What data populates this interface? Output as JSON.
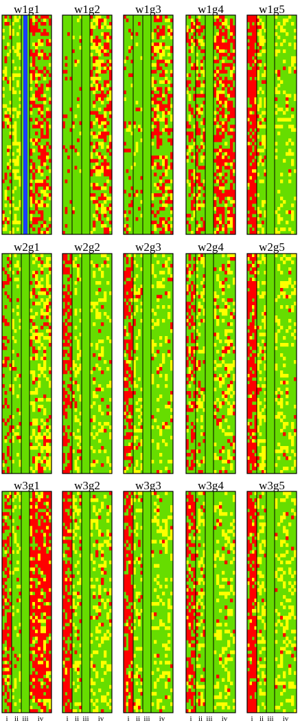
{
  "chart_data": {
    "type": "heatmap",
    "colors": {
      "green": "#66dd00",
      "yellow": "#ffff00",
      "red": "#ff0000",
      "blue": "#1a3cff",
      "border": "#000000"
    },
    "column_tick_labels": [
      "i",
      "ii",
      "iii",
      "iv"
    ],
    "panels": [
      {
        "title": "w1g1",
        "cols": {
          "i": [
            0.7,
            0.2,
            0.25
          ],
          "ii": [
            0.7,
            0.3,
            0.05
          ],
          "iii": "blue",
          "iv": [
            0.5,
            0.15,
            0.35
          ]
        }
      },
      {
        "title": "w1g2",
        "cols": {
          "i": [
            0.85,
            0.0,
            0.15
          ],
          "ii": [
            0.9,
            0.06,
            0.04
          ],
          "iii": [
            1.0,
            0,
            0
          ],
          "iv": [
            0.45,
            0.25,
            0.3
          ]
        }
      },
      {
        "title": "w1g3",
        "cols": {
          "i": [
            0.8,
            0.05,
            0.15
          ],
          "ii": [
            0.85,
            0.1,
            0.05
          ],
          "iii": [
            1.0,
            0,
            0
          ],
          "iv": [
            0.45,
            0.2,
            0.35
          ]
        }
      },
      {
        "title": "w1g4",
        "cols": {
          "i": [
            0.6,
            0.15,
            0.25
          ],
          "ii": [
            0.5,
            0.2,
            0.3
          ],
          "iii": [
            1.0,
            0,
            0
          ],
          "iv": [
            0.4,
            0.15,
            0.45
          ]
        }
      },
      {
        "title": "w1g5",
        "cols": {
          "i": [
            0.2,
            0.05,
            0.75
          ],
          "ii": [
            0.55,
            0.35,
            0.1
          ],
          "iii": [
            1.0,
            0,
            0
          ],
          "iv": [
            0.75,
            0.22,
            0.03
          ]
        }
      },
      {
        "title": "w2g1",
        "cols": {
          "i": [
            0.75,
            0.05,
            0.2
          ],
          "ii": [
            0.8,
            0.15,
            0.05
          ],
          "iii": [
            1.0,
            0,
            0
          ],
          "iv": [
            0.55,
            0.3,
            0.15
          ]
        }
      },
      {
        "title": "w2g2",
        "cols": {
          "i": [
            0.5,
            0.0,
            0.5
          ],
          "ii": [
            0.7,
            0.25,
            0.05
          ],
          "iii": [
            1.0,
            0,
            0
          ],
          "iv": [
            0.75,
            0.2,
            0.05
          ]
        }
      },
      {
        "title": "w2g3",
        "cols": {
          "i": [
            0.3,
            0.05,
            0.65
          ],
          "ii": [
            0.7,
            0.25,
            0.05
          ],
          "iii": [
            1.0,
            0,
            0
          ],
          "iv": [
            0.75,
            0.2,
            0.05
          ]
        }
      },
      {
        "title": "w2g4",
        "cols": {
          "i": [
            0.55,
            0.05,
            0.4
          ],
          "ii": [
            0.65,
            0.25,
            0.1
          ],
          "iii": [
            1.0,
            0,
            0
          ],
          "iv": [
            0.65,
            0.25,
            0.1
          ]
        }
      },
      {
        "title": "w2g5",
        "cols": {
          "i": [
            0.25,
            0.05,
            0.7
          ],
          "ii": [
            0.6,
            0.35,
            0.05
          ],
          "iii": [
            1.0,
            0,
            0
          ],
          "iv": [
            0.75,
            0.22,
            0.03
          ]
        }
      },
      {
        "title": "w3g1",
        "cols": {
          "i": [
            0.55,
            0.05,
            0.4
          ],
          "ii": [
            0.8,
            0.15,
            0.05
          ],
          "iii": [
            1.0,
            0,
            0
          ],
          "iv": [
            0.2,
            0.15,
            0.65
          ]
        }
      },
      {
        "title": "w3g2",
        "cols": {
          "i": [
            0.3,
            0.05,
            0.65
          ],
          "ii": [
            0.65,
            0.3,
            0.05
          ],
          "iii": [
            1.0,
            0,
            0
          ],
          "iv": [
            0.7,
            0.25,
            0.05
          ]
        }
      },
      {
        "title": "w3g3",
        "cols": {
          "i": [
            0.25,
            0.05,
            0.7
          ],
          "ii": [
            0.7,
            0.25,
            0.05
          ],
          "iii": [
            1.0,
            0,
            0
          ],
          "iv": [
            0.75,
            0.22,
            0.03
          ]
        }
      },
      {
        "title": "w3g4",
        "cols": {
          "i": [
            0.45,
            0.05,
            0.5
          ],
          "ii": [
            0.65,
            0.25,
            0.1
          ],
          "iii": [
            1.0,
            0,
            0
          ],
          "iv": [
            0.7,
            0.25,
            0.05
          ]
        }
      },
      {
        "title": "w3g5",
        "cols": {
          "i": [
            0.2,
            0.05,
            0.75
          ],
          "ii": [
            0.6,
            0.35,
            0.05
          ],
          "iii": [
            1.0,
            0,
            0
          ],
          "iv": [
            0.7,
            0.27,
            0.03
          ]
        }
      }
    ]
  }
}
